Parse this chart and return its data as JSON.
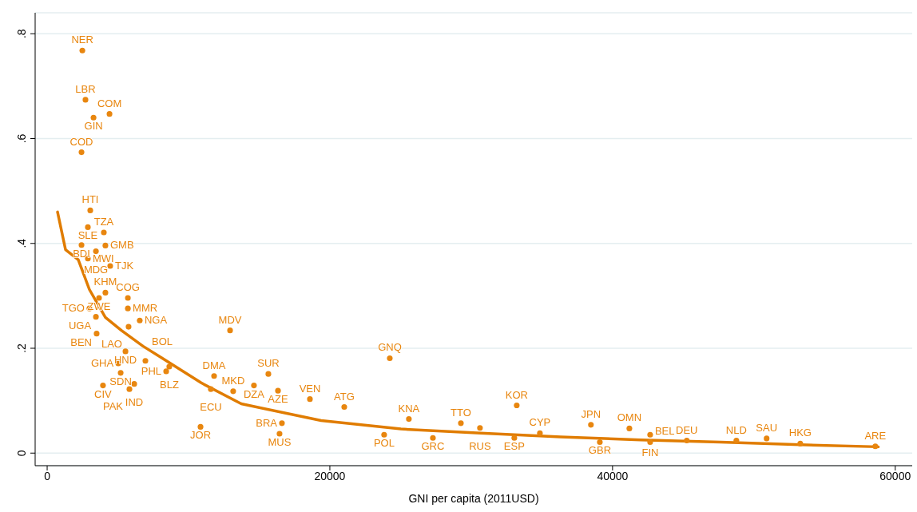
{
  "chart_data": {
    "type": "scatter",
    "xlabel": "GNI per capita (2011USD)",
    "xlim": [
      -850,
      61200
    ],
    "ylim": [
      -0.024,
      0.84
    ],
    "xticks": [
      0,
      20000,
      40000,
      60000
    ],
    "yticks": [
      {
        "value": 0,
        "label": "0"
      },
      {
        "value": 0.2,
        "label": ".2"
      },
      {
        "value": 0.4,
        "label": ".4"
      },
      {
        "value": 0.6,
        "label": ".6"
      },
      {
        "value": 0.8,
        "label": ".8"
      }
    ],
    "grid": "y",
    "series": [
      {
        "color": "#e8860f",
        "marker": "circle",
        "x": [
          2490,
          2710,
          3280,
          4410,
          2430,
          3050,
          2880,
          4010,
          2430,
          4120,
          3450,
          2880,
          4460,
          4120,
          3670,
          5710,
          2990,
          5710,
          3450,
          6550,
          5760,
          3500,
          12940,
          5540,
          5030,
          6950,
          8640,
          8420,
          5200,
          3950,
          6160,
          5820,
          11810,
          11580,
          13160,
          15650,
          14630,
          16330,
          18590,
          21020,
          24240,
          33220,
          25590,
          29270,
          30620,
          23840,
          16440,
          16610,
          27290,
          34860,
          33050,
          38470,
          39100,
          41190,
          42660,
          42660,
          45250,
          48760,
          50900,
          53280,
          58590,
          10850
        ],
        "values": [
          0.768,
          0.674,
          0.64,
          0.647,
          0.574,
          0.463,
          0.431,
          0.421,
          0.397,
          0.396,
          0.385,
          0.371,
          0.357,
          0.306,
          0.296,
          0.296,
          0.276,
          0.276,
          0.26,
          0.253,
          0.241,
          0.228,
          0.234,
          0.194,
          0.171,
          0.176,
          0.165,
          0.156,
          0.153,
          0.129,
          0.132,
          0.122,
          0.147,
          0.122,
          0.118,
          0.151,
          0.129,
          0.119,
          0.103,
          0.088,
          0.181,
          0.091,
          0.065,
          0.057,
          0.048,
          0.035,
          0.037,
          0.057,
          0.029,
          0.038,
          0.029,
          0.054,
          0.021,
          0.047,
          0.035,
          0.021,
          0.024,
          0.024,
          0.028,
          0.018,
          0.013,
          0.05
        ],
        "value_labels": [
          "NER",
          "LBR",
          "GIN",
          "COM",
          "COD",
          "HTI",
          "SLE",
          "TZA",
          "BDI",
          "GMB",
          "MDG",
          "MWI",
          "TJK",
          "KHM",
          "ZWE",
          "COG",
          "TGO",
          "MMR",
          "UGA",
          "NGA",
          "LAO",
          "BEN",
          "MDV",
          "HND",
          "GHA",
          "BOL",
          "BLZ",
          "PHL",
          "SDN",
          "CIV",
          "IND",
          "PAK",
          "DMA",
          "ECU",
          "MKD",
          "SUR",
          "DZA",
          "AZE",
          "VEN",
          "ATG",
          "GNQ",
          "KOR",
          "KNA",
          "TTO",
          "RUS",
          "POL",
          "MUS",
          "BRA",
          "GRC",
          "CYP",
          "ESP",
          "JPN",
          "GBR",
          "OMN",
          "FIN",
          "BEL",
          "DEU",
          "NLD",
          "SAU",
          "HKG",
          "ARE",
          "JOR"
        ]
      },
      {
        "type": "line",
        "color": "#e07c00",
        "marker": "none",
        "line_style": "solid",
        "x": [
          734,
          1300,
          2200,
          2990,
          4120,
          5250,
          6780,
          8080,
          10900,
          13730,
          19380,
          25030,
          30680,
          36330,
          41980,
          47630,
          53280,
          58800
        ],
        "values": [
          0.46,
          0.388,
          0.369,
          0.312,
          0.259,
          0.234,
          0.204,
          0.182,
          0.134,
          0.094,
          0.062,
          0.046,
          0.038,
          0.031,
          0.025,
          0.021,
          0.016,
          0.012
        ]
      }
    ]
  }
}
